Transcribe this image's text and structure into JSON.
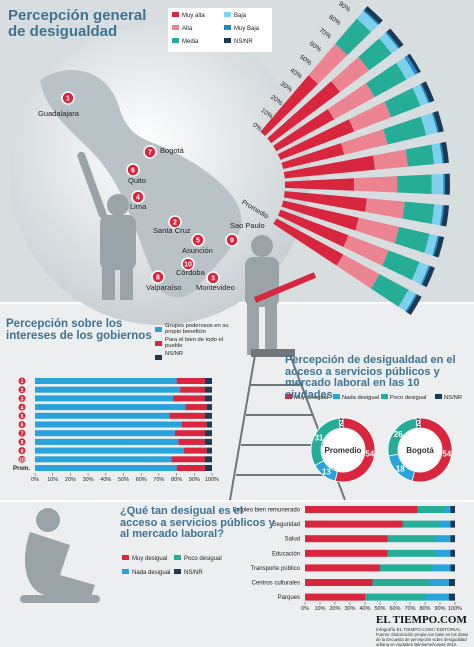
{
  "header": {
    "title": "Percepción general de desigualdad"
  },
  "map": {
    "cities": [
      {
        "number": "1",
        "name": "Guadalajara"
      },
      {
        "number": "2",
        "name": "Santa Cruz"
      },
      {
        "number": "3",
        "name": "Montevideo"
      },
      {
        "number": "4",
        "name": "Lima"
      },
      {
        "number": "5",
        "name": "Asunción"
      },
      {
        "number": "6",
        "name": "Quito"
      },
      {
        "number": "7",
        "name": "Bogotá"
      },
      {
        "number": "8",
        "name": "Valparaíso"
      },
      {
        "number": "9",
        "name": "Sao Paulo"
      },
      {
        "number": "10",
        "name": "Córdoba"
      }
    ]
  },
  "chart_data": [
    {
      "type": "radial_bar",
      "categories": [
        null,
        null,
        null,
        null,
        null,
        null,
        null,
        null,
        null,
        null,
        "Promedio"
      ],
      "series": [
        {
          "name": "Muy alta",
          "color": "#d7263d",
          "values": [
            45,
            52,
            40,
            48,
            38,
            55,
            42,
            50,
            47,
            44,
            46
          ]
        },
        {
          "name": "Alta",
          "color": "#ec8391",
          "values": [
            25,
            22,
            28,
            24,
            27,
            20,
            26,
            23,
            25,
            26,
            25
          ]
        },
        {
          "name": "Media",
          "color": "#25ad98",
          "values": [
            20,
            17,
            22,
            19,
            24,
            16,
            21,
            18,
            19,
            20,
            20
          ]
        },
        {
          "name": "Baja",
          "color": "#7fd0ec",
          "values": [
            6,
            5,
            6,
            5,
            7,
            5,
            7,
            5,
            5,
            6,
            5
          ]
        },
        {
          "name": "Muy Baja",
          "color": "#1b8ccc",
          "values": [
            1,
            1,
            2,
            1,
            1,
            1,
            1,
            1,
            1,
            1,
            1
          ]
        },
        {
          "name": "NS/NR",
          "color": "#1d3a55",
          "values": [
            3,
            3,
            2,
            3,
            3,
            3,
            3,
            3,
            3,
            3,
            3
          ]
        }
      ],
      "xlim": [
        0,
        100
      ],
      "xticks": [
        {
          "value": 0,
          "label": "0%"
        },
        {
          "value": 10,
          "label": "10%"
        },
        {
          "value": 20,
          "label": "20%"
        },
        {
          "value": 30,
          "label": "30%"
        },
        {
          "value": 40,
          "label": "40%"
        },
        {
          "value": 50,
          "label": "50%"
        },
        {
          "value": 60,
          "label": "60%"
        },
        {
          "value": 70,
          "label": "70%"
        },
        {
          "value": 80,
          "label": "80%"
        },
        {
          "value": 90,
          "label": "90%"
        },
        {
          "value": 100,
          "label": "100%"
        }
      ]
    },
    {
      "type": "stacked_hbar",
      "title": "Percepción sobre los intereses de los gobiernos",
      "categories": [
        "1",
        "2",
        "3",
        "4",
        "5",
        "6",
        "7",
        "8",
        "9",
        "10",
        "Prom."
      ],
      "series": [
        {
          "name": "Grupos poderosos en su propio beneficio",
          "color": "#29a3dc",
          "values": [
            80,
            82,
            78,
            85,
            76,
            83,
            79,
            81,
            84,
            77,
            80
          ]
        },
        {
          "name": "Para el bien de todo el pueblo",
          "color": "#d7263d",
          "values": [
            16,
            14,
            18,
            12,
            20,
            14,
            17,
            15,
            13,
            19,
            16
          ]
        },
        {
          "name": "NS/NR",
          "color": "#1d3a55",
          "values": [
            4,
            4,
            4,
            3,
            4,
            3,
            4,
            4,
            3,
            4,
            4
          ]
        }
      ],
      "xlim": [
        0,
        100
      ],
      "xticks": [
        {
          "value": 0,
          "label": "0%"
        },
        {
          "value": 10,
          "label": "10%"
        },
        {
          "value": 20,
          "label": "20%"
        },
        {
          "value": 30,
          "label": "30%"
        },
        {
          "value": 40,
          "label": "40%"
        },
        {
          "value": 50,
          "label": "50%"
        },
        {
          "value": 60,
          "label": "60%"
        },
        {
          "value": 70,
          "label": "70%"
        },
        {
          "value": 80,
          "label": "80%"
        },
        {
          "value": 90,
          "label": "90%"
        },
        {
          "value": 100,
          "label": "100%"
        }
      ]
    },
    {
      "type": "donut",
      "title": "Percepción de desigualdad en el acceso a servicios públicos y mercado laboral en las 10 ciudades",
      "categories": [
        "Muy desigual",
        "Nada desigual",
        "Poco desigual",
        "NS/NR"
      ],
      "colors": [
        "#d7263d",
        "#29a3dc",
        "#25ad98",
        "#1d3a55"
      ],
      "donuts": [
        {
          "name": "Promedio",
          "values": [
            54,
            13,
            31,
            2
          ]
        },
        {
          "name": "Bogotá",
          "values": [
            54,
            18,
            26,
            2
          ]
        }
      ]
    },
    {
      "type": "stacked_hbar",
      "title": "¿Qué tan desigual es el acceso a servicios públicos y al mercado laboral?",
      "categories": [
        "Empleo bien remunerado",
        "Seguridad",
        "Salud",
        "Educación",
        "Transporte público",
        "Centros culturales",
        "Parques"
      ],
      "series": [
        {
          "name": "Muy desigual",
          "color": "#d7263d",
          "values": [
            75,
            65,
            55,
            55,
            50,
            45,
            40
          ]
        },
        {
          "name": "Poco desigual",
          "color": "#25ad98",
          "values": [
            18,
            25,
            32,
            32,
            35,
            38,
            40
          ]
        },
        {
          "name": "Nada desigual",
          "color": "#29a3dc",
          "values": [
            4,
            7,
            10,
            10,
            12,
            13,
            16
          ]
        },
        {
          "name": "NS/NR",
          "color": "#1d3a55",
          "values": [
            3,
            3,
            3,
            3,
            3,
            4,
            4
          ]
        }
      ],
      "xlim": [
        0,
        100
      ],
      "xticks": [
        {
          "value": 0,
          "label": "0%"
        },
        {
          "value": 10,
          "label": "10%"
        },
        {
          "value": 20,
          "label": "20%"
        },
        {
          "value": 30,
          "label": "30%"
        },
        {
          "value": 40,
          "label": "40%"
        },
        {
          "value": 50,
          "label": "50%"
        },
        {
          "value": 60,
          "label": "60%"
        },
        {
          "value": 70,
          "label": "70%"
        },
        {
          "value": 80,
          "label": "80%"
        },
        {
          "value": 90,
          "label": "90%"
        },
        {
          "value": 100,
          "label": "100%"
        }
      ]
    }
  ],
  "footer": {
    "brand": "EL TIEMPO.COM",
    "credit": "Infografía EL TIEMPO.COM / EDITORIAL",
    "source": "Fuente: Elaboración propia con base en los datos de la Encuesta de percepción sobre desigualdad urbana en ciudades latinoamericanas 2012."
  }
}
